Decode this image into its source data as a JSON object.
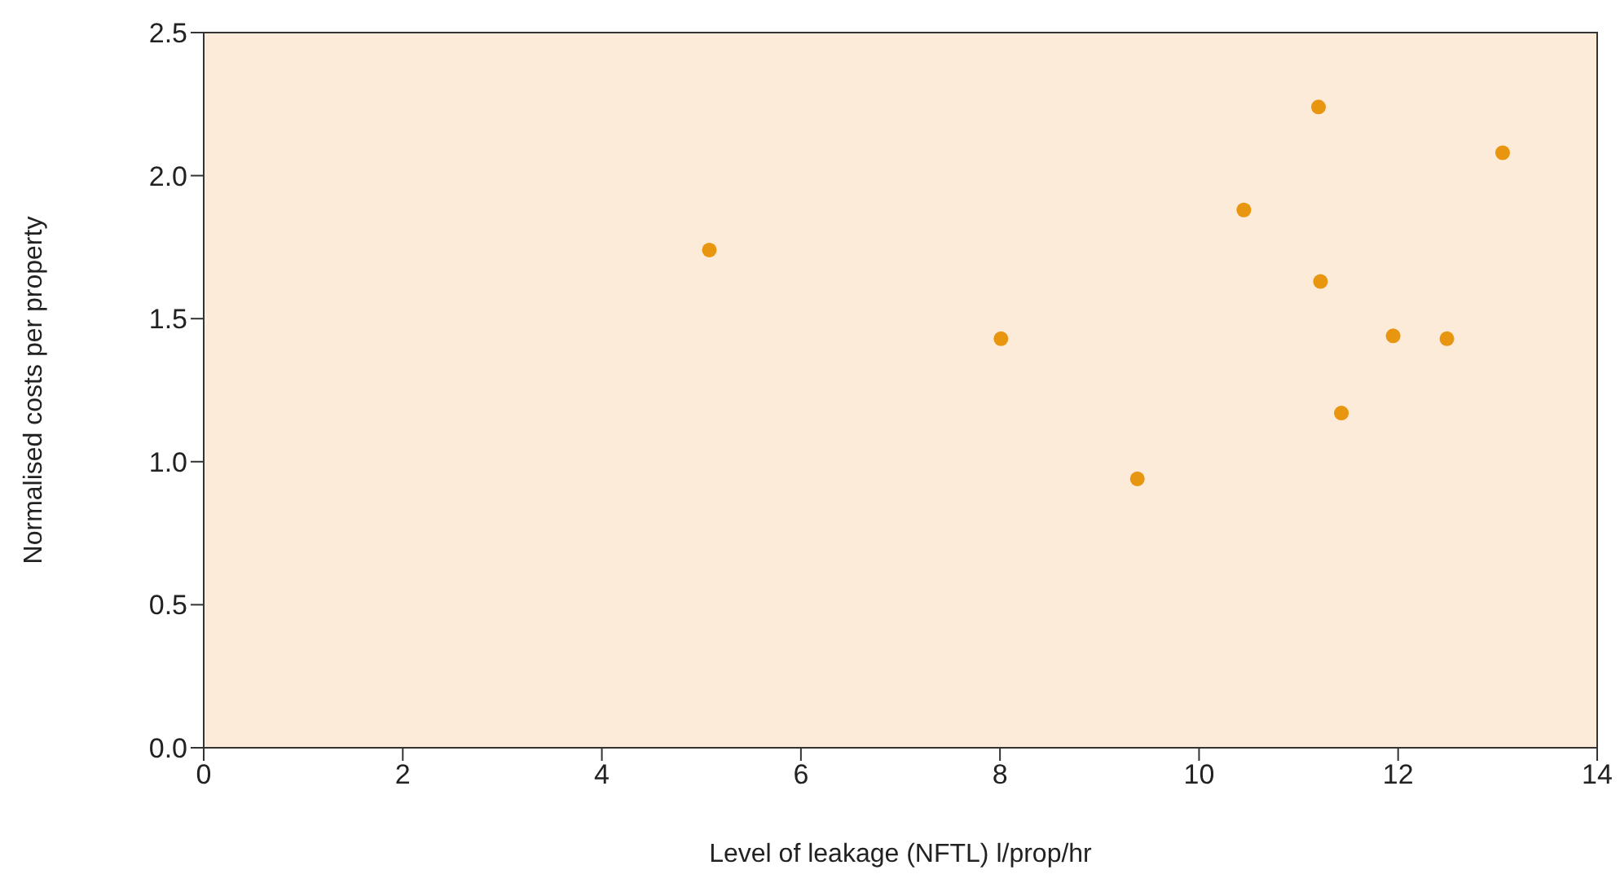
{
  "chart_data": {
    "type": "scatter",
    "xlabel": "Level of leakage (NFTL) l/prop/hr",
    "ylabel": "Normalised costs per property",
    "x": [
      5.08,
      8.01,
      9.38,
      10.45,
      11.2,
      11.22,
      11.43,
      11.95,
      12.49,
      13.05
    ],
    "series": [
      {
        "color": "#e8960f",
        "values": [
          1.74,
          1.43,
          0.94,
          1.88,
          2.24,
          1.63,
          1.17,
          1.44,
          1.43,
          2.08
        ]
      }
    ],
    "xlim": [
      0,
      14
    ],
    "xticks": [
      0,
      2,
      4,
      6,
      8,
      10,
      12,
      14
    ],
    "ylim": [
      0,
      2.5
    ],
    "yticks": [
      {
        "value": 0,
        "label": "0.0"
      },
      {
        "value": 0.5,
        "label": "0.5"
      },
      {
        "value": 1,
        "label": "1.0"
      },
      {
        "value": 1.5,
        "label": "1.5"
      },
      {
        "value": 2,
        "label": "2.0"
      },
      {
        "value": 2.5,
        "label": "2.5"
      }
    ],
    "grid": false,
    "marker": "circle"
  }
}
